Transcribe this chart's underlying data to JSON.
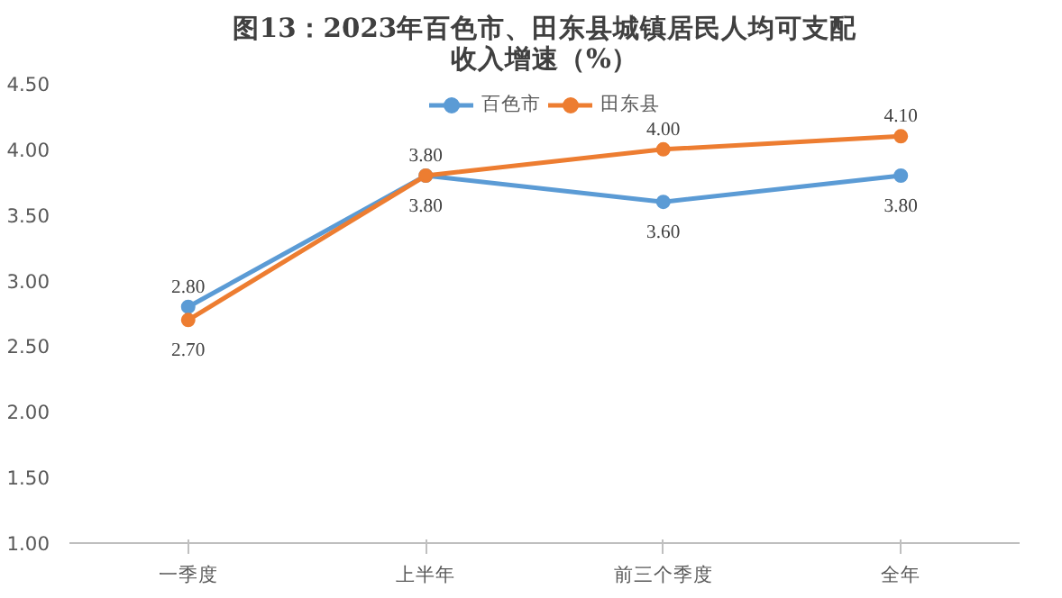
{
  "chart_data": {
    "type": "line",
    "title": "图13：2023年百色市、田东县城镇居民人均可支配收入增速（%）",
    "categories": [
      "一季度",
      "上半年",
      "前三个季度",
      "全年"
    ],
    "series": [
      {
        "name": "百色市",
        "color": "#5b9bd5",
        "values": [
          2.8,
          3.8,
          3.6,
          3.8
        ],
        "value_labels": [
          "2.80",
          "3.80",
          "3.60",
          "3.80"
        ]
      },
      {
        "name": "田东县",
        "color": "#ed7d31",
        "values": [
          2.7,
          3.8,
          4.0,
          4.1
        ],
        "value_labels": [
          "2.70",
          "3.80",
          "4.00",
          "4.10"
        ]
      }
    ],
    "ylim": [
      1.0,
      4.5
    ],
    "yticks": [
      {
        "value": 1.0,
        "label": "1.00"
      },
      {
        "value": 1.5,
        "label": "1.50"
      },
      {
        "value": 2.0,
        "label": "2.00"
      },
      {
        "value": 2.5,
        "label": "2.50"
      },
      {
        "value": 3.0,
        "label": "3.00"
      },
      {
        "value": 3.5,
        "label": "3.50"
      },
      {
        "value": 4.0,
        "label": "4.00"
      },
      {
        "value": 4.5,
        "label": "4.50"
      }
    ],
    "grid": false,
    "legend": "top",
    "marker": "circle",
    "line_style": "solid"
  }
}
